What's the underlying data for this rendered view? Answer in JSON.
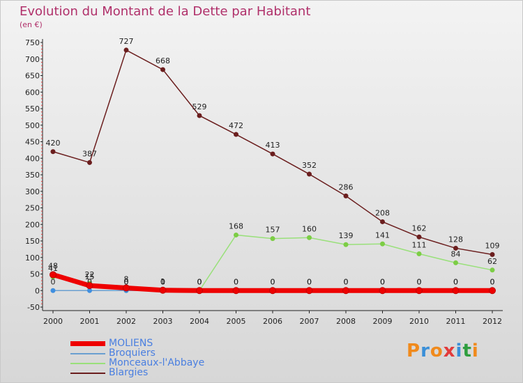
{
  "title": "Evolution du Montant de la Dette par Habitant",
  "subtitle": "(en €)",
  "logo": {
    "text": "Proxiti",
    "colors": [
      "#f08a1c",
      "#3a8fd8",
      "#f08a1c",
      "#e23b3b",
      "#3a8fd8",
      "#2f9e3f",
      "#f08a1c"
    ]
  },
  "chart_data": {
    "type": "line",
    "x": [
      "2000",
      "2001",
      "2002",
      "2003",
      "2004",
      "2005",
      "2006",
      "2007",
      "2008",
      "2009",
      "2010",
      "2011",
      "2012"
    ],
    "ylim": [
      -50,
      750
    ],
    "yticks": [
      -50,
      0,
      50,
      100,
      150,
      200,
      250,
      300,
      350,
      400,
      450,
      500,
      550,
      600,
      650,
      700,
      750
    ],
    "grid": false,
    "legend_position": "bottom-left",
    "series": [
      {
        "name": "Blargies",
        "color": "#6b1e1e",
        "marker": "#6b1e1e",
        "values": [
          420,
          387,
          727,
          668,
          529,
          472,
          413,
          352,
          286,
          208,
          162,
          128,
          109
        ],
        "labels": [
          "420",
          "387",
          "727",
          "668",
          "529",
          "472",
          "413",
          "352",
          "286",
          "208",
          "162",
          "128",
          "109"
        ]
      },
      {
        "name": "Monceaux-l'Abbaye",
        "color": "#99e07a",
        "marker": "#7ccd45",
        "values": [
          41,
          22,
          0,
          0,
          0,
          168,
          157,
          160,
          139,
          141,
          111,
          84,
          62
        ],
        "labels": [
          "41",
          "22",
          "0",
          "0",
          "0",
          "168",
          "157",
          "160",
          "139",
          "141",
          "111",
          "84",
          "62"
        ]
      },
      {
        "name": "Broquiers",
        "color": "#6a9fd0",
        "marker": "#3f8fe0",
        "values": [
          0,
          0,
          0,
          0,
          0,
          0,
          0,
          0,
          0,
          0,
          0,
          0,
          0
        ],
        "labels": [
          "0",
          "0",
          "0",
          "0",
          "0",
          "0",
          "0",
          "0",
          "0",
          "0",
          "0",
          "0",
          "0"
        ]
      },
      {
        "name": "MOLIENS",
        "color": "#ee0000",
        "marker": "#ee0000",
        "values": [
          48,
          15,
          8,
          1,
          0,
          0,
          0,
          0,
          0,
          0,
          0,
          0,
          0
        ],
        "labels": [
          "48",
          "15",
          "8",
          "1",
          "0",
          "0",
          "0",
          "0",
          "0",
          "0",
          "0",
          "0",
          "0"
        ]
      }
    ],
    "legend": [
      {
        "name": "MOLIENS",
        "color": "#ee0000"
      },
      {
        "name": "Broquiers",
        "color": "#6a9fd0"
      },
      {
        "name": "Monceaux-l'Abbaye",
        "color": "#99e07a"
      },
      {
        "name": "Blargies",
        "color": "#6b1e1e"
      }
    ]
  }
}
